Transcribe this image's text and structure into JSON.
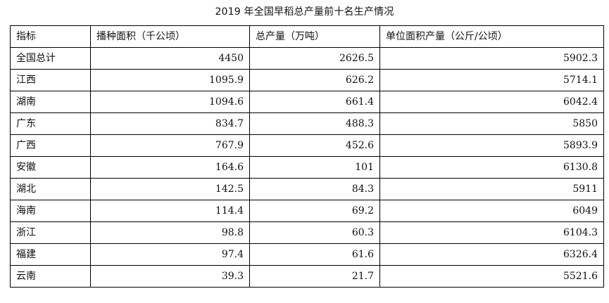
{
  "title": "2019 年全国早稻总产量前十名生产情况",
  "table": {
    "headers": [
      "指标",
      "播种面积（千公顷）",
      "总产量（万吨）",
      "单位面积产量（公斤/公顷）"
    ],
    "rows": [
      [
        "全国总计",
        "4450",
        "2626.5",
        "5902.3"
      ],
      [
        "江西",
        "1095.9",
        "626.2",
        "5714.1"
      ],
      [
        "湖南",
        "1094.6",
        "661.4",
        "6042.4"
      ],
      [
        "广东",
        "834.7",
        "488.3",
        "5850"
      ],
      [
        "广西",
        "767.9",
        "452.6",
        "5893.9"
      ],
      [
        "安徽",
        "164.6",
        "101",
        "6130.8"
      ],
      [
        "湖北",
        "142.5",
        "84.3",
        "5911"
      ],
      [
        "海南",
        "114.4",
        "69.2",
        "6049"
      ],
      [
        "浙江",
        "98.8",
        "60.3",
        "6104.3"
      ],
      [
        "福建",
        "97.4",
        "61.6",
        "6326.4"
      ],
      [
        "云南",
        "39.3",
        "21.7",
        "5521.6"
      ]
    ]
  }
}
